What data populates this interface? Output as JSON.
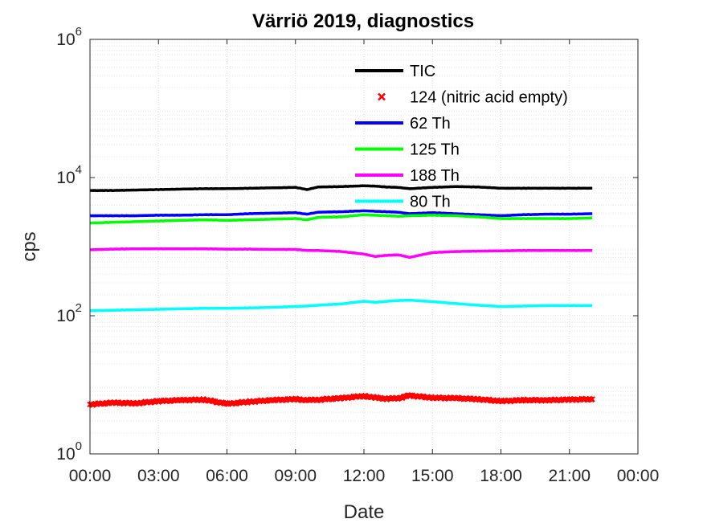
{
  "chart_data": {
    "type": "line",
    "title": "Värriö 2019, diagnostics",
    "xlabel": "Date",
    "ylabel": "cps",
    "xlim_hours": [
      0,
      24
    ],
    "x_ticks": [
      {
        "hour": 0,
        "label": "00:00"
      },
      {
        "hour": 3,
        "label": "03:00"
      },
      {
        "hour": 6,
        "label": "06:00"
      },
      {
        "hour": 9,
        "label": "09:00"
      },
      {
        "hour": 12,
        "label": "12:00"
      },
      {
        "hour": 15,
        "label": "15:00"
      },
      {
        "hour": 18,
        "label": "18:00"
      },
      {
        "hour": 21,
        "label": "21:00"
      },
      {
        "hour": 24,
        "label": "00:00"
      }
    ],
    "y_scale": "log",
    "ylim": [
      1,
      1000000
    ],
    "y_ticks": [
      {
        "value": 1,
        "base": "10",
        "exp": "0"
      },
      {
        "value": 100,
        "base": "10",
        "exp": "2"
      },
      {
        "value": 10000,
        "base": "10",
        "exp": "4"
      },
      {
        "value": 1000000,
        "base": "10",
        "exp": "6"
      }
    ],
    "grid": true,
    "minor_grid": true,
    "legend_placement": "top-center",
    "x": [
      0,
      1,
      2,
      3,
      4,
      5,
      6,
      7,
      8,
      9,
      9.5,
      10,
      11,
      12,
      12.5,
      13,
      13.5,
      14,
      15,
      16,
      17,
      18,
      19,
      20,
      21,
      22
    ],
    "series": [
      {
        "name": "TIC",
        "color": "#000000",
        "style": "line",
        "values": [
          6500,
          6500,
          6600,
          6700,
          6800,
          6900,
          6900,
          7000,
          7100,
          7200,
          6700,
          7300,
          7400,
          7600,
          7500,
          7300,
          7200,
          6900,
          7200,
          7400,
          7300,
          7000,
          7000,
          7000,
          7000,
          7000
        ]
      },
      {
        "name": "124 (nitric acid empty)",
        "color": "#ff0000",
        "style": "marker",
        "values": [
          5.2,
          5.5,
          5.4,
          5.8,
          6.0,
          6.1,
          5.3,
          5.7,
          6.0,
          6.2,
          6.0,
          6.1,
          6.4,
          6.9,
          6.5,
          6.3,
          6.4,
          7.0,
          6.5,
          6.4,
          6.2,
          5.8,
          6.0,
          6.0,
          6.1,
          6.2
        ]
      },
      {
        "name": "62 Th",
        "color": "#0000ff",
        "style": "line",
        "values": [
          2800,
          2800,
          2800,
          2850,
          2850,
          2900,
          2900,
          3000,
          3050,
          3100,
          2950,
          3150,
          3200,
          3300,
          3250,
          3200,
          3150,
          3000,
          3100,
          3000,
          2900,
          2800,
          2900,
          2950,
          2950,
          3000
        ]
      },
      {
        "name": "125 Th",
        "color": "#00ff00",
        "style": "line",
        "values": [
          2200,
          2250,
          2300,
          2350,
          2400,
          2450,
          2400,
          2450,
          2500,
          2550,
          2450,
          2650,
          2700,
          2900,
          2850,
          2800,
          2750,
          2800,
          2850,
          2800,
          2700,
          2550,
          2550,
          2550,
          2550,
          2600
        ]
      },
      {
        "name": "188 Th",
        "color": "#ff00ff",
        "style": "line",
        "values": [
          900,
          920,
          930,
          930,
          930,
          930,
          920,
          920,
          910,
          910,
          880,
          880,
          850,
          780,
          720,
          750,
          760,
          700,
          820,
          850,
          860,
          870,
          880,
          880,
          880,
          880
        ]
      },
      {
        "name": "80 Th",
        "color": "#00ffff",
        "style": "line",
        "values": [
          118,
          120,
          122,
          124,
          126,
          128,
          128,
          130,
          132,
          136,
          138,
          142,
          148,
          162,
          156,
          162,
          166,
          168,
          160,
          150,
          142,
          136,
          138,
          140,
          140,
          140
        ]
      }
    ]
  }
}
